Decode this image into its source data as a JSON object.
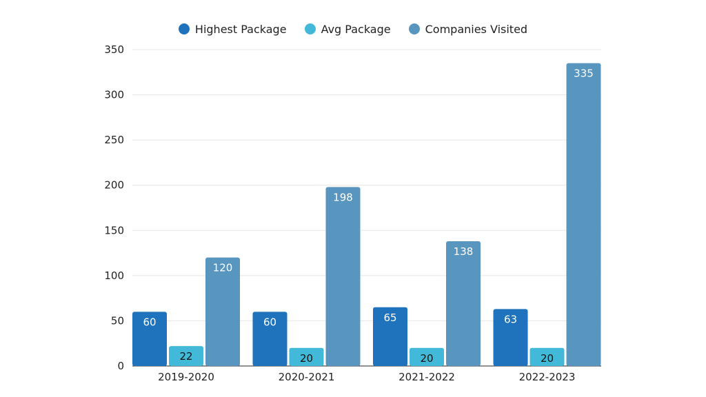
{
  "chart_data": {
    "type": "bar",
    "categories": [
      "2019-2020",
      "2020-2021",
      "2021-2022",
      "2022-2023"
    ],
    "series": [
      {
        "name": "Highest Package",
        "values": [
          60,
          60,
          65,
          63
        ],
        "color": "#1f73bd",
        "label_color": "#ffffff"
      },
      {
        "name": "Avg Package",
        "values": [
          22,
          20,
          20,
          20
        ],
        "color": "#43b9d9",
        "label_color": "#111111"
      },
      {
        "name": "Companies Visited",
        "values": [
          120,
          198,
          138,
          335
        ],
        "color": "#5996bf",
        "label_color": "#ffffff"
      }
    ],
    "yticks": [
      0,
      50,
      100,
      150,
      200,
      250,
      300,
      350
    ],
    "ylim": [
      0,
      350
    ],
    "grid": true,
    "legend_position": "top-center",
    "title": "",
    "xlabel": "",
    "ylabel": ""
  }
}
